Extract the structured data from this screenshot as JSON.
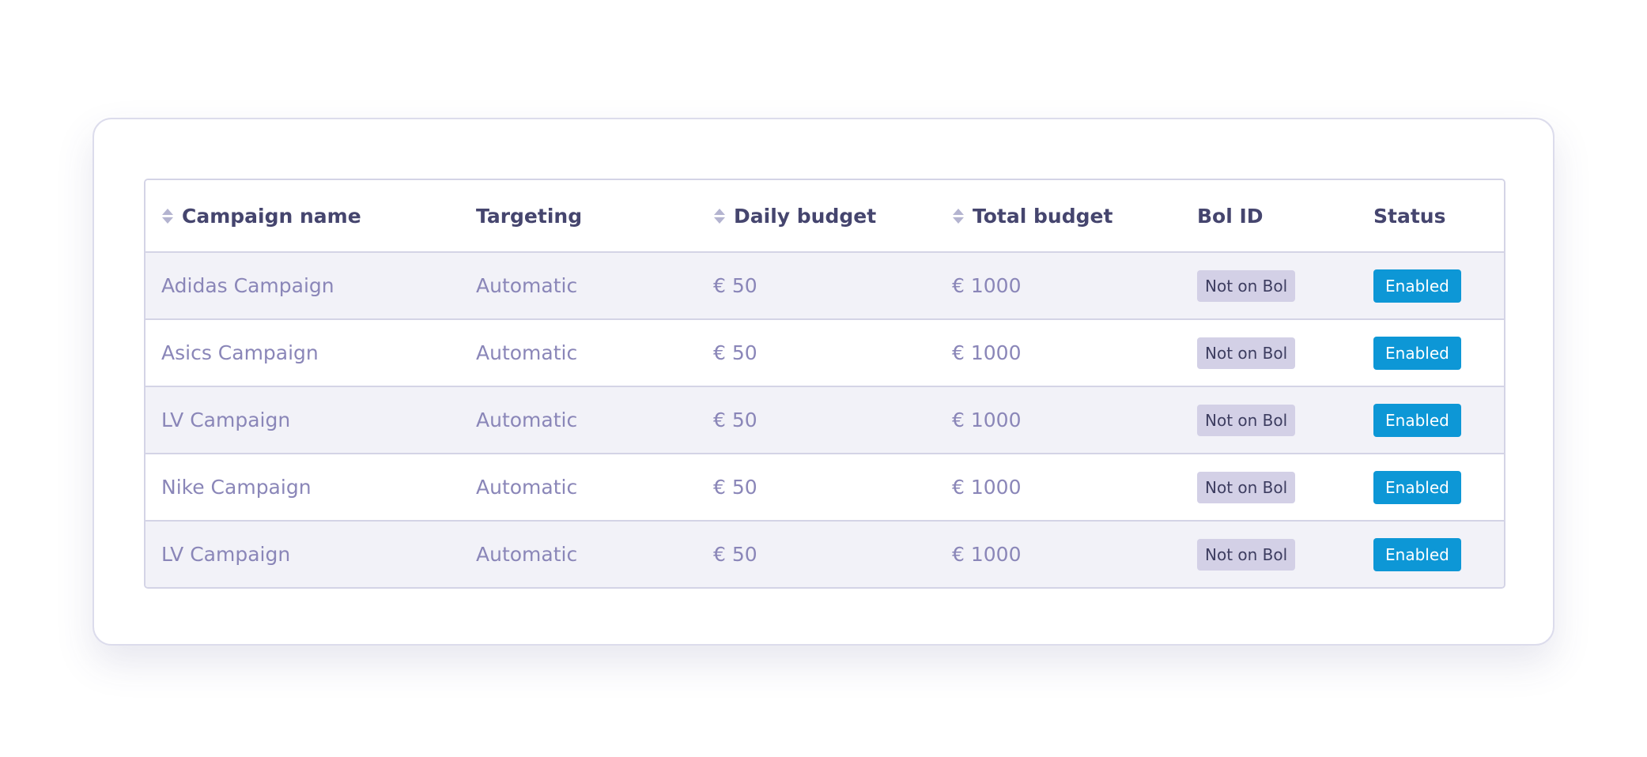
{
  "table": {
    "columns": [
      {
        "label": "Campaign name",
        "sortable": true
      },
      {
        "label": "Targeting",
        "sortable": false
      },
      {
        "label": "Daily budget",
        "sortable": true
      },
      {
        "label": "Total budget",
        "sortable": true
      },
      {
        "label": "Bol ID",
        "sortable": false
      },
      {
        "label": "Status",
        "sortable": false
      }
    ],
    "rows": [
      {
        "campaign": "Adidas Campaign",
        "targeting": "Automatic",
        "daily_budget": "€ 50",
        "total_budget": "€ 1000",
        "bol_id": "Not on Bol",
        "status": "Enabled"
      },
      {
        "campaign": "Asics Campaign",
        "targeting": "Automatic",
        "daily_budget": "€ 50",
        "total_budget": "€ 1000",
        "bol_id": "Not on Bol",
        "status": "Enabled"
      },
      {
        "campaign": "LV Campaign",
        "targeting": "Automatic",
        "daily_budget": "€ 50",
        "total_budget": "€ 1000",
        "bol_id": "Not on Bol",
        "status": "Enabled"
      },
      {
        "campaign": "Nike Campaign",
        "targeting": "Automatic",
        "daily_budget": "€ 50",
        "total_budget": "€ 1000",
        "bol_id": "Not on Bol",
        "status": "Enabled"
      },
      {
        "campaign": "LV Campaign",
        "targeting": "Automatic",
        "daily_budget": "€ 50",
        "total_budget": "€ 1000",
        "bol_id": "Not on Bol",
        "status": "Enabled"
      }
    ]
  },
  "icons": {
    "sort": "sort-icon"
  },
  "colors": {
    "header_text": "#45456e",
    "cell_text": "#8a86b8",
    "bol_badge_bg": "#d3d0e6",
    "status_badge_bg": "#0d97d6",
    "alt_row_bg": "#f2f2f8",
    "border": "#d4d4e6"
  }
}
